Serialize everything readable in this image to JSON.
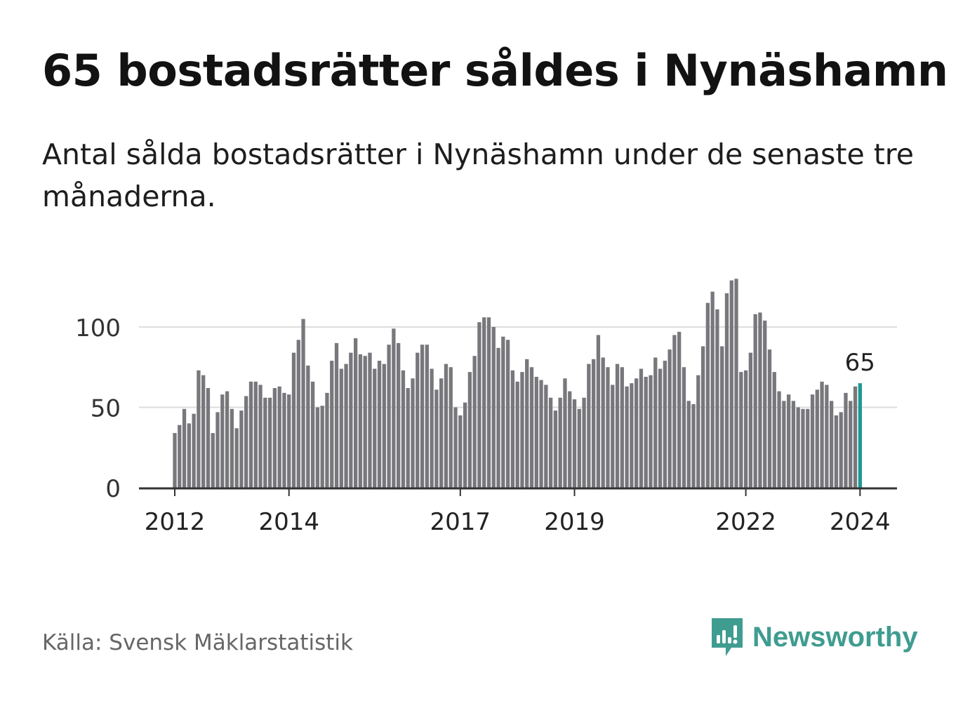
{
  "title": "65 bostadsrätter såldes i Nynäshamn",
  "subtitle": "Antal sålda bostadsrätter i Nynäshamn under de senaste tre månaderna.",
  "source": "Källa: Svensk Mäklarstatistik",
  "brand": {
    "name": "Newsworthy",
    "icon": "newsworthy-logo-icon"
  },
  "colors": {
    "bar": "#78777c",
    "highlight": "#1c9a93",
    "grid": "#dddddd",
    "axis": "#333333",
    "brand": "#3f9c90"
  },
  "chart_data": {
    "type": "bar",
    "title": "65 bostadsrätter såldes i Nynäshamn",
    "xlabel": "",
    "ylabel": "",
    "ylim": [
      0,
      130
    ],
    "yticks": [
      0,
      50,
      100
    ],
    "grid": true,
    "x_tick_labels": [
      "2012",
      "2014",
      "2017",
      "2019",
      "2022",
      "2024"
    ],
    "x_tick_indices": [
      0,
      24,
      60,
      84,
      120,
      144
    ],
    "highlight_label": "65",
    "start": "2012-01",
    "values": [
      34,
      39,
      49,
      40,
      46,
      73,
      70,
      62,
      34,
      47,
      58,
      60,
      49,
      37,
      48,
      57,
      66,
      66,
      64,
      56,
      56,
      62,
      63,
      59,
      58,
      84,
      92,
      105,
      76,
      66,
      50,
      51,
      59,
      79,
      90,
      74,
      77,
      84,
      93,
      83,
      82,
      84,
      74,
      79,
      77,
      89,
      99,
      90,
      73,
      62,
      68,
      84,
      89,
      89,
      74,
      61,
      68,
      77,
      75,
      50,
      45,
      53,
      72,
      82,
      103,
      106,
      106,
      100,
      87,
      94,
      92,
      73,
      66,
      72,
      80,
      75,
      69,
      67,
      64,
      56,
      48,
      56,
      68,
      60,
      55,
      49,
      56,
      77,
      80,
      95,
      81,
      75,
      64,
      77,
      75,
      63,
      65,
      68,
      74,
      69,
      70,
      81,
      74,
      79,
      86,
      95,
      97,
      75,
      54,
      52,
      70,
      88,
      115,
      122,
      111,
      88,
      121,
      129,
      130,
      72,
      73,
      84,
      108,
      109,
      104,
      86,
      72,
      60,
      54,
      58,
      54,
      50,
      49,
      49,
      58,
      61,
      66,
      64,
      54,
      45,
      47,
      59,
      54,
      63,
      65
    ]
  }
}
